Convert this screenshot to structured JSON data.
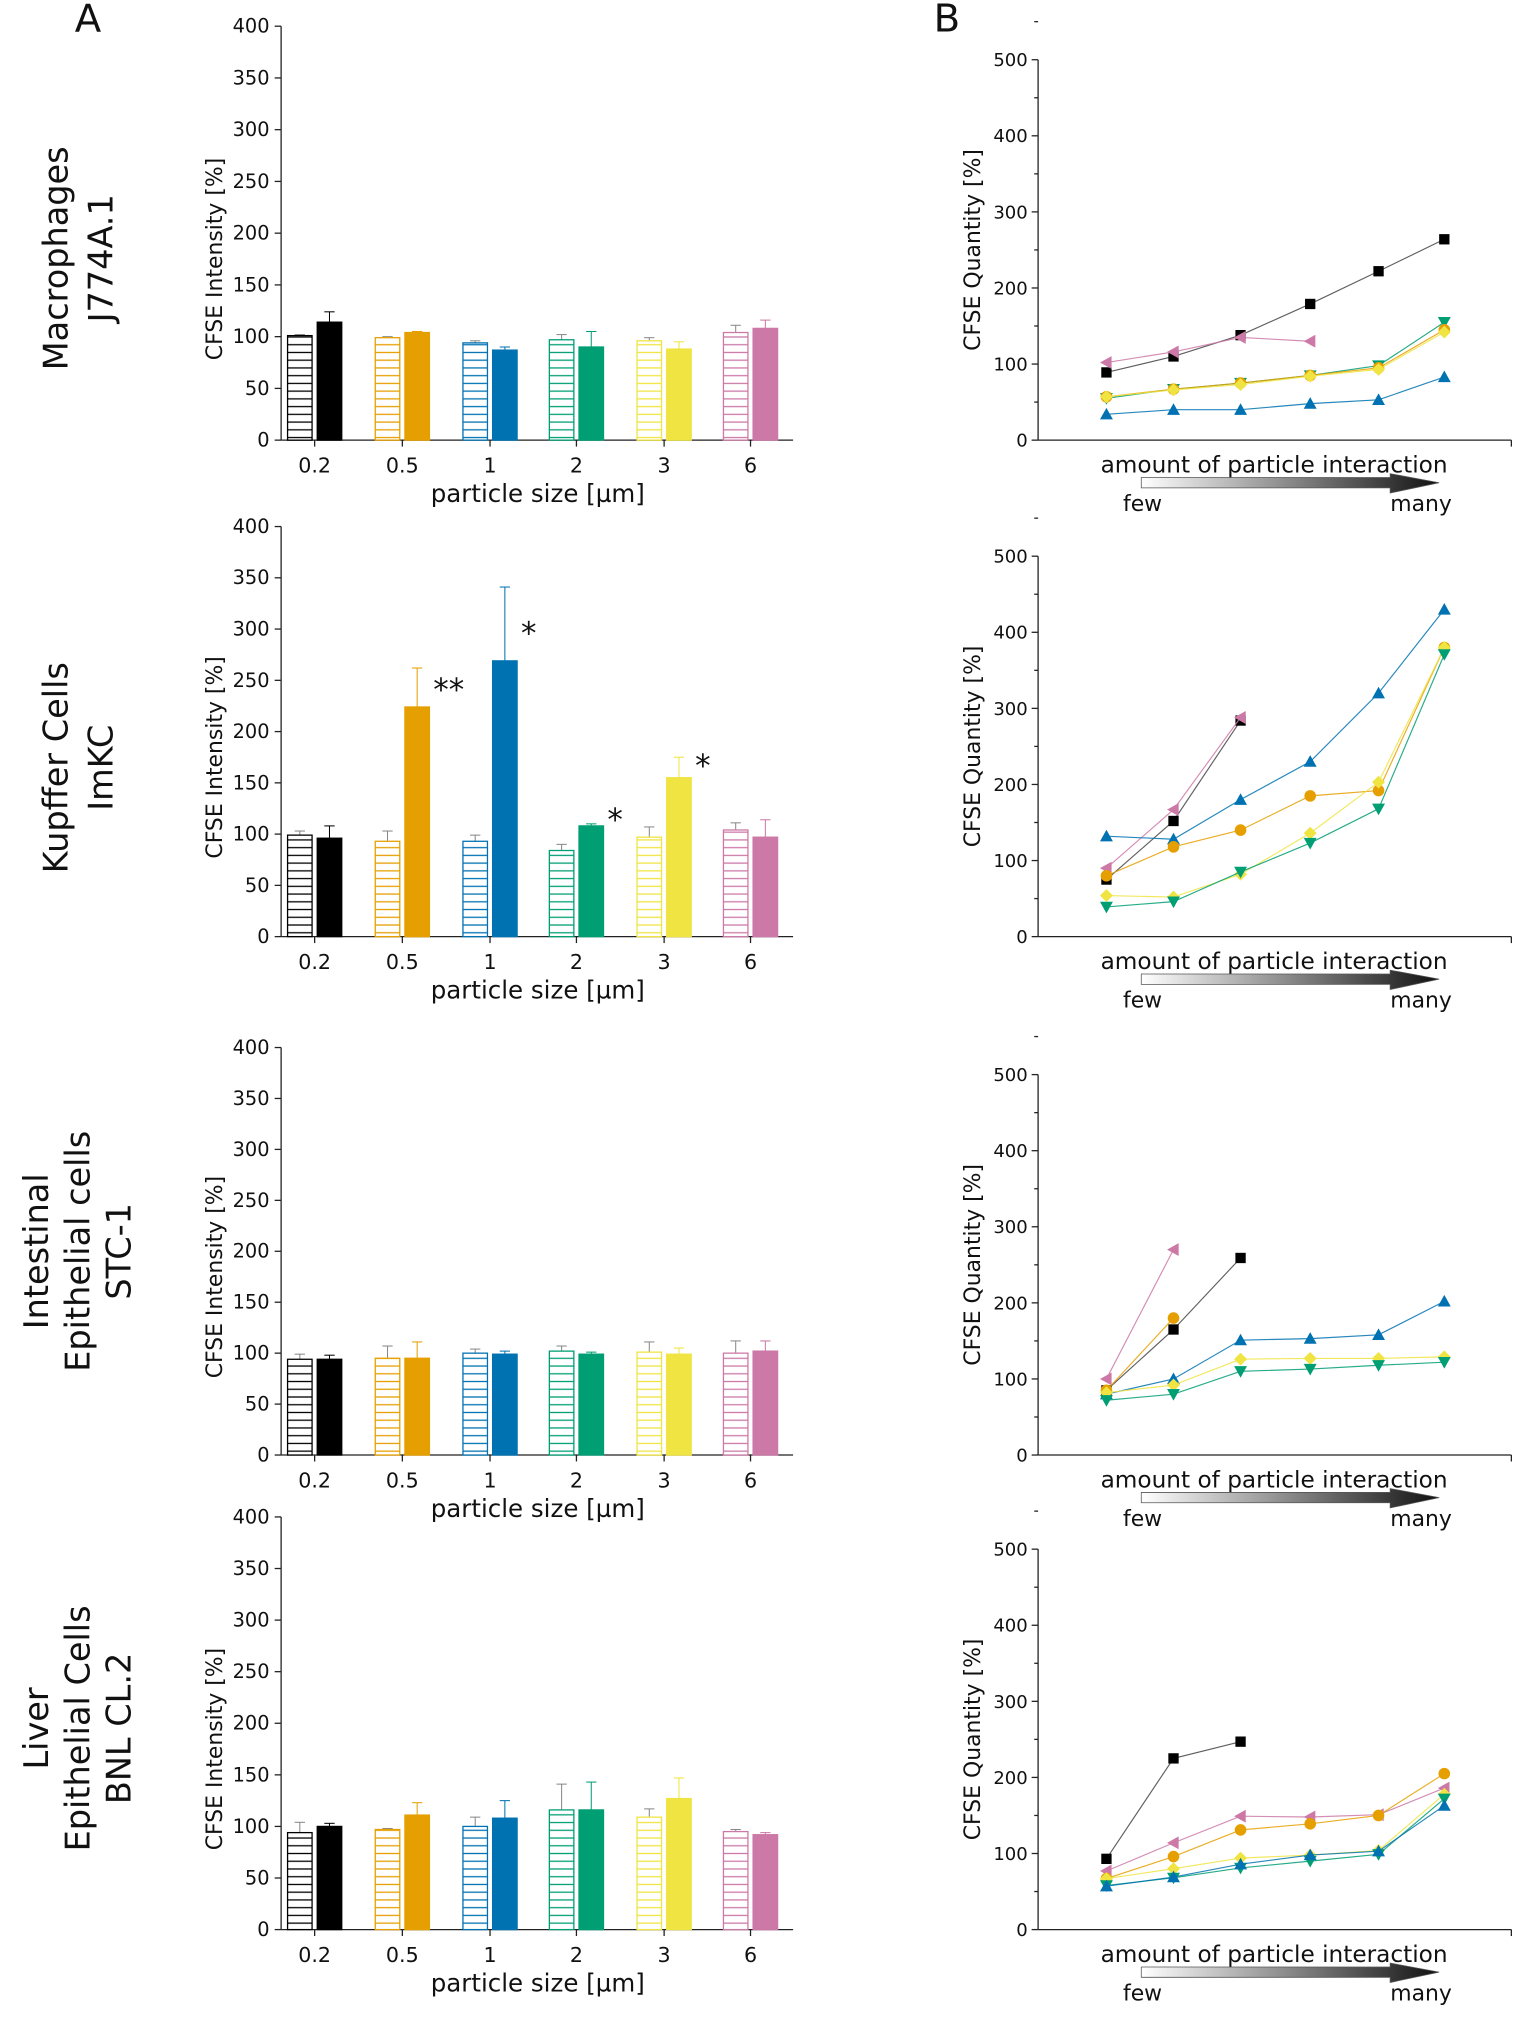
{
  "panel_labels": [
    "A",
    "B"
  ],
  "colors": {
    "0.2": "#000000",
    "0.5": "#E69F00",
    "1": "#0072B2",
    "2": "#009E73",
    "3": "#F0E442",
    "6": "#CC79A7"
  },
  "row_labels": [
    [
      "Macrophages",
      "J774A.1"
    ],
    [
      "Kupffer Cells",
      "ImKC"
    ],
    [
      "Intestinal",
      "Epithelial cells",
      "STC-1"
    ],
    [
      "Liver",
      "Epithelial Cells",
      "BNL CL.2"
    ]
  ],
  "chart_data": [
    {
      "panel": "A",
      "row": 0,
      "type": "bar",
      "ylabel": "CFSE Intensity [%]",
      "xlabel": "particle size [µm]",
      "ylim": [
        0,
        400
      ],
      "yticks": [
        0,
        50,
        100,
        150,
        200,
        250,
        300,
        350,
        400
      ],
      "categories": [
        "0.2",
        "0.5",
        "1",
        "2",
        "3",
        "6"
      ],
      "series": [
        {
          "style": "hatched",
          "values": [
            101,
            99,
            94,
            97,
            96,
            104
          ],
          "errors": [
            1,
            1,
            2,
            5,
            3,
            7
          ]
        },
        {
          "style": "solid",
          "values": [
            114,
            104,
            87,
            90,
            88,
            108
          ],
          "errors": [
            10,
            1,
            3,
            15,
            7,
            8
          ]
        }
      ],
      "annotations": []
    },
    {
      "panel": "A",
      "row": 1,
      "type": "bar",
      "ylabel": "CFSE Intensity [%]",
      "xlabel": "particle size [µm]",
      "ylim": [
        0,
        400
      ],
      "yticks": [
        0,
        50,
        100,
        150,
        200,
        250,
        300,
        350,
        400
      ],
      "categories": [
        "0.2",
        "0.5",
        "1",
        "2",
        "3",
        "6"
      ],
      "series": [
        {
          "style": "hatched",
          "values": [
            99,
            93,
            93,
            84,
            97,
            104
          ],
          "errors": [
            4,
            10,
            6,
            6,
            10,
            7
          ]
        },
        {
          "style": "solid",
          "values": [
            96,
            224,
            269,
            108,
            155,
            97
          ],
          "errors": [
            12,
            38,
            72,
            2,
            20,
            17
          ]
        }
      ],
      "annotations": [
        {
          "category": "0.5",
          "text": "**"
        },
        {
          "category": "1",
          "text": "*"
        },
        {
          "category": "2",
          "text": "*"
        },
        {
          "category": "3",
          "text": "*"
        }
      ]
    },
    {
      "panel": "A",
      "row": 2,
      "type": "bar",
      "ylabel": "CFSE Intensity [%]",
      "xlabel": "particle size [µm]",
      "ylim": [
        0,
        400
      ],
      "yticks": [
        0,
        50,
        100,
        150,
        200,
        250,
        300,
        350,
        400
      ],
      "categories": [
        "0.2",
        "0.5",
        "1",
        "2",
        "3",
        "6"
      ],
      "series": [
        {
          "style": "hatched",
          "values": [
            94,
            95,
            100,
            102,
            101,
            100
          ],
          "errors": [
            5,
            12,
            4,
            5,
            10,
            12
          ]
        },
        {
          "style": "solid",
          "values": [
            94,
            95,
            99,
            99,
            99,
            102
          ],
          "errors": [
            4,
            16,
            3,
            2,
            6,
            10
          ]
        }
      ],
      "annotations": []
    },
    {
      "panel": "A",
      "row": 3,
      "type": "bar",
      "ylabel": "CFSE Intensity [%]",
      "xlabel": "particle size [µm]",
      "ylim": [
        0,
        400
      ],
      "yticks": [
        0,
        50,
        100,
        150,
        200,
        250,
        300,
        350,
        400
      ],
      "categories": [
        "0.2",
        "0.5",
        "1",
        "2",
        "3",
        "6"
      ],
      "series": [
        {
          "style": "hatched",
          "values": [
            94,
            97,
            100,
            116,
            109,
            95
          ],
          "errors": [
            10,
            1,
            9,
            25,
            8,
            2
          ]
        },
        {
          "style": "solid",
          "values": [
            100,
            111,
            108,
            116,
            127,
            92
          ],
          "errors": [
            3,
            12,
            17,
            27,
            20,
            2
          ]
        }
      ],
      "annotations": []
    },
    {
      "panel": "B",
      "row": 0,
      "type": "line",
      "ylabel": "CFSE Quantity [%]",
      "xlabel": "amount of particle interaction",
      "arrow_labels": [
        "few",
        "many"
      ],
      "ylim": [
        0,
        500
      ],
      "yticks": [
        0,
        100,
        200,
        300,
        400,
        500
      ],
      "series": [
        {
          "size": "0.2",
          "marker": "square",
          "values": [
            89,
            110,
            138,
            179,
            222,
            264
          ]
        },
        {
          "size": "6",
          "marker": "triangle-left",
          "values": [
            102,
            116,
            135,
            130
          ]
        },
        {
          "size": "1",
          "marker": "triangle-up",
          "values": [
            34,
            40,
            40,
            48,
            53,
            83
          ]
        },
        {
          "size": "2",
          "marker": "triangle-down",
          "values": [
            55,
            67,
            75,
            85,
            98,
            155
          ]
        },
        {
          "size": "0.5",
          "marker": "circle",
          "values": [
            57,
            67,
            75,
            85,
            95,
            145
          ]
        },
        {
          "size": "3",
          "marker": "diamond",
          "values": [
            57,
            66,
            73,
            84,
            93,
            142
          ]
        }
      ]
    },
    {
      "panel": "B",
      "row": 1,
      "type": "line",
      "ylabel": "CFSE Quantity [%]",
      "xlabel": "amount of particle interaction",
      "arrow_labels": [
        "few",
        "many"
      ],
      "ylim": [
        0,
        500
      ],
      "yticks": [
        0,
        100,
        200,
        300,
        400,
        500
      ],
      "series": [
        {
          "size": "0.2",
          "marker": "square",
          "values": [
            75,
            152,
            284
          ]
        },
        {
          "size": "6",
          "marker": "triangle-left",
          "values": [
            90,
            167,
            288
          ]
        },
        {
          "size": "1",
          "marker": "triangle-up",
          "values": [
            132,
            128,
            180,
            230,
            320,
            430
          ]
        },
        {
          "size": "0.5",
          "marker": "circle",
          "values": [
            80,
            118,
            140,
            185,
            192,
            380
          ]
        },
        {
          "size": "3",
          "marker": "diamond",
          "values": [
            54,
            52,
            82,
            136,
            203,
            380
          ]
        },
        {
          "size": "2",
          "marker": "triangle-down",
          "values": [
            39,
            46,
            85,
            123,
            168,
            371
          ]
        }
      ]
    },
    {
      "panel": "B",
      "row": 2,
      "type": "line",
      "ylabel": "CFSE Quantity [%]",
      "xlabel": "amount of particle interaction",
      "arrow_labels": [
        "few",
        "many"
      ],
      "ylim": [
        0,
        500
      ],
      "yticks": [
        0,
        100,
        200,
        300,
        400,
        500
      ],
      "series": [
        {
          "size": "6",
          "marker": "triangle-left",
          "values": [
            100,
            270
          ]
        },
        {
          "size": "0.2",
          "marker": "square",
          "values": [
            85,
            165,
            259
          ]
        },
        {
          "size": "0.5",
          "marker": "circle",
          "values": [
            85,
            180
          ]
        },
        {
          "size": "1",
          "marker": "triangle-up",
          "values": [
            80,
            100,
            151,
            153,
            158,
            202
          ]
        },
        {
          "size": "3",
          "marker": "diamond",
          "values": [
            82,
            92,
            126,
            127,
            127,
            129
          ]
        },
        {
          "size": "2",
          "marker": "triangle-down",
          "values": [
            72,
            80,
            110,
            113,
            118,
            122
          ]
        }
      ]
    },
    {
      "panel": "B",
      "row": 3,
      "type": "line",
      "ylabel": "CFSE Quantity [%]",
      "xlabel": "amount of particle interaction",
      "arrow_labels": [
        "few",
        "many"
      ],
      "ylim": [
        0,
        500
      ],
      "yticks": [
        0,
        100,
        200,
        300,
        400,
        500
      ],
      "series": [
        {
          "size": "0.2",
          "marker": "square",
          "values": [
            93,
            225,
            247
          ]
        },
        {
          "size": "6",
          "marker": "triangle-left",
          "values": [
            77,
            114,
            149,
            148,
            151,
            186
          ]
        },
        {
          "size": "0.5",
          "marker": "circle",
          "values": [
            67,
            96,
            131,
            139,
            150,
            205
          ]
        },
        {
          "size": "3",
          "marker": "diamond",
          "values": [
            67,
            80,
            94,
            98,
            104,
            178
          ]
        },
        {
          "size": "2",
          "marker": "triangle-down",
          "values": [
            58,
            68,
            81,
            90,
            99,
            172
          ]
        },
        {
          "size": "1",
          "marker": "triangle-up",
          "values": [
            57,
            69,
            86,
            98,
            103,
            163
          ]
        }
      ]
    }
  ]
}
